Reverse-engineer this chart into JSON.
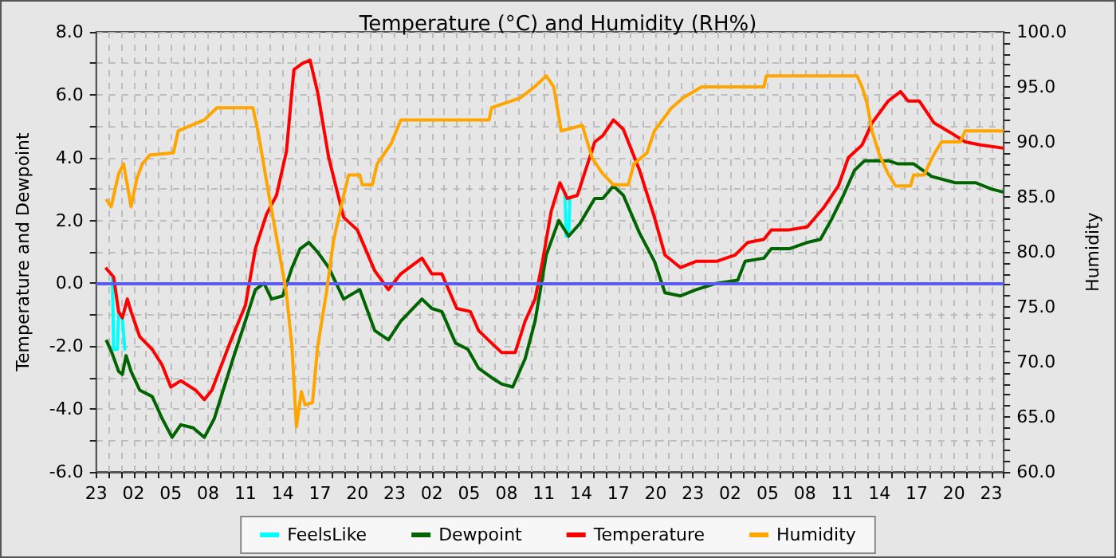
{
  "chart_data": {
    "type": "line",
    "title": "Temperature (°C) and Humidity (RH%)",
    "ylabel": "Temperature and Dewpoint",
    "y2label": "Humidity",
    "xlim": [
      "--01-01T23:00",
      "--01-05T00:00"
    ],
    "xticks": [
      {
        "value": "--01-01T23:00",
        "label": "23"
      },
      {
        "value": "--01-02T00:00",
        "label": null
      },
      {
        "value": "--01-02T01:00",
        "label": null
      },
      {
        "value": "--01-02T02:00",
        "label": "02"
      },
      {
        "value": "--01-02T03:00",
        "label": null
      },
      {
        "value": "--01-02T04:00",
        "label": null
      },
      {
        "value": "--01-02T05:00",
        "label": "05"
      },
      {
        "value": "--01-02T06:00",
        "label": null
      },
      {
        "value": "--01-02T07:00",
        "label": null
      },
      {
        "value": "--01-02T08:00",
        "label": "08"
      },
      {
        "value": "--01-02T09:00",
        "label": null
      },
      {
        "value": "--01-02T10:00",
        "label": null
      },
      {
        "value": "--01-02T11:00",
        "label": "11"
      },
      {
        "value": "--01-02T12:00",
        "label": null
      },
      {
        "value": "--01-02T13:00",
        "label": null
      },
      {
        "value": "--01-02T14:00",
        "label": "14"
      },
      {
        "value": "--01-02T15:00",
        "label": null
      },
      {
        "value": "--01-02T16:00",
        "label": null
      },
      {
        "value": "--01-02T17:00",
        "label": "17"
      },
      {
        "value": "--01-02T18:00",
        "label": null
      },
      {
        "value": "--01-02T19:00",
        "label": null
      },
      {
        "value": "--01-02T20:00",
        "label": "20"
      },
      {
        "value": "--01-02T21:00",
        "label": null
      },
      {
        "value": "--01-02T22:00",
        "label": null
      },
      {
        "value": "--01-02T23:00",
        "label": "23"
      },
      {
        "value": "--01-03T00:00",
        "label": null
      },
      {
        "value": "--01-03T01:00",
        "label": null
      },
      {
        "value": "--01-03T02:00",
        "label": "02"
      },
      {
        "value": "--01-03T03:00",
        "label": null
      },
      {
        "value": "--01-03T04:00",
        "label": null
      },
      {
        "value": "--01-03T05:00",
        "label": "05"
      },
      {
        "value": "--01-03T06:00",
        "label": null
      },
      {
        "value": "--01-03T07:00",
        "label": null
      },
      {
        "value": "--01-03T08:00",
        "label": "08"
      },
      {
        "value": "--01-03T09:00",
        "label": null
      },
      {
        "value": "--01-03T10:00",
        "label": null
      },
      {
        "value": "--01-03T11:00",
        "label": "11"
      },
      {
        "value": "--01-03T12:00",
        "label": null
      },
      {
        "value": "--01-03T13:00",
        "label": null
      },
      {
        "value": "--01-03T14:00",
        "label": "14"
      },
      {
        "value": "--01-03T15:00",
        "label": null
      },
      {
        "value": "--01-03T16:00",
        "label": null
      },
      {
        "value": "--01-03T17:00",
        "label": "17"
      },
      {
        "value": "--01-03T18:00",
        "label": null
      },
      {
        "value": "--01-03T19:00",
        "label": null
      },
      {
        "value": "--01-03T20:00",
        "label": "20"
      },
      {
        "value": "--01-03T21:00",
        "label": null
      },
      {
        "value": "--01-03T22:00",
        "label": null
      },
      {
        "value": "--01-03T23:00",
        "label": "23"
      },
      {
        "value": "--01-04T00:00",
        "label": null
      },
      {
        "value": "--01-04T01:00",
        "label": null
      },
      {
        "value": "--01-04T02:00",
        "label": "02"
      },
      {
        "value": "--01-04T03:00",
        "label": null
      },
      {
        "value": "--01-04T04:00",
        "label": null
      },
      {
        "value": "--01-04T05:00",
        "label": "05"
      },
      {
        "value": "--01-04T06:00",
        "label": null
      },
      {
        "value": "--01-04T07:00",
        "label": null
      },
      {
        "value": "--01-04T08:00",
        "label": "08"
      },
      {
        "value": "--01-04T09:00",
        "label": null
      },
      {
        "value": "--01-04T10:00",
        "label": null
      },
      {
        "value": "--01-04T11:00",
        "label": "11"
      },
      {
        "value": "--01-04T12:00",
        "label": null
      },
      {
        "value": "--01-04T13:00",
        "label": null
      },
      {
        "value": "--01-04T14:00",
        "label": "14"
      },
      {
        "value": "--01-04T15:00",
        "label": null
      },
      {
        "value": "--01-04T16:00",
        "label": null
      },
      {
        "value": "--01-04T17:00",
        "label": "17"
      },
      {
        "value": "--01-04T18:00",
        "label": null
      },
      {
        "value": "--01-04T19:00",
        "label": null
      },
      {
        "value": "--01-04T20:00",
        "label": "20"
      },
      {
        "value": "--01-04T21:00",
        "label": null
      },
      {
        "value": "--01-04T22:00",
        "label": null
      },
      {
        "value": "--01-04T23:00",
        "label": "23"
      },
      {
        "value": "--01-05T00:00",
        "label": null
      }
    ],
    "ylim": [
      -6,
      8
    ],
    "yticks": [
      {
        "value": -6,
        "label": "-6.0"
      },
      {
        "value": -5,
        "label": null
      },
      {
        "value": -4,
        "label": "-4.0"
      },
      {
        "value": -3,
        "label": null
      },
      {
        "value": -2,
        "label": "-2.0"
      },
      {
        "value": -1,
        "label": null
      },
      {
        "value": 0,
        "label": "0.0"
      },
      {
        "value": 1,
        "label": null
      },
      {
        "value": 2,
        "label": "2.0"
      },
      {
        "value": 3,
        "label": null
      },
      {
        "value": 4,
        "label": "4.0"
      },
      {
        "value": 5,
        "label": null
      },
      {
        "value": 6,
        "label": "6.0"
      },
      {
        "value": 7,
        "label": null
      },
      {
        "value": 8,
        "label": "8.0"
      }
    ],
    "y2lim": [
      60,
      100
    ],
    "y2ticks": [
      {
        "value": 60,
        "label": "60.0"
      },
      {
        "value": 61,
        "label": null
      },
      {
        "value": 62,
        "label": null
      },
      {
        "value": 63,
        "label": null
      },
      {
        "value": 64,
        "label": null
      },
      {
        "value": 65,
        "label": "65.0"
      },
      {
        "value": 66,
        "label": null
      },
      {
        "value": 67,
        "label": null
      },
      {
        "value": 68,
        "label": null
      },
      {
        "value": 69,
        "label": null
      },
      {
        "value": 70,
        "label": "70.0"
      },
      {
        "value": 71,
        "label": null
      },
      {
        "value": 72,
        "label": null
      },
      {
        "value": 73,
        "label": null
      },
      {
        "value": 74,
        "label": null
      },
      {
        "value": 75,
        "label": "75.0"
      },
      {
        "value": 76,
        "label": null
      },
      {
        "value": 77,
        "label": null
      },
      {
        "value": 78,
        "label": null
      },
      {
        "value": 79,
        "label": null
      },
      {
        "value": 80,
        "label": "80.0"
      },
      {
        "value": 81,
        "label": null
      },
      {
        "value": 82,
        "label": null
      },
      {
        "value": 83,
        "label": null
      },
      {
        "value": 84,
        "label": null
      },
      {
        "value": 85,
        "label": "85.0"
      },
      {
        "value": 86,
        "label": null
      },
      {
        "value": 87,
        "label": null
      },
      {
        "value": 88,
        "label": null
      },
      {
        "value": 89,
        "label": null
      },
      {
        "value": 90,
        "label": "90.0"
      },
      {
        "value": 91,
        "label": null
      },
      {
        "value": 92,
        "label": null
      },
      {
        "value": 93,
        "label": null
      },
      {
        "value": 94,
        "label": null
      },
      {
        "value": 95,
        "label": "95.0"
      },
      {
        "value": 96,
        "label": null
      },
      {
        "value": 97,
        "label": null
      },
      {
        "value": 98,
        "label": null
      },
      {
        "value": 99,
        "label": null
      },
      {
        "value": 100,
        "label": "100.0"
      }
    ],
    "grid": true,
    "legend": "bottom",
    "marker": "none",
    "line_style": "solid",
    "ref_lines": [
      {
        "axis": "y",
        "value": 0,
        "color": "#5b5bf0"
      }
    ],
    "series": [
      {
        "name": "FeelsLike",
        "color": "#00ffff",
        "x": [
          "--01-02T00:18",
          "--01-02T00:24",
          "--01-02T00:42",
          "--01-02T00:48",
          "--01-02T01:06",
          "--01-02T01:18",
          "--01-02T01:24",
          "--01-02T01:30",
          "--01-02T02:00",
          "--01-03T12:42",
          "--01-03T12:48",
          "--01-03T13:00",
          "--01-03T13:06"
        ],
        "values": [
          0.2,
          -2.1,
          -2.1,
          -0.9,
          -1.1,
          -2.1,
          -2.1,
          null,
          null,
          2.9,
          1.5,
          1.5,
          2.7
        ]
      },
      {
        "name": "Dewpoint",
        "color": "#006400",
        "x": [
          "--01-01T23:48",
          "--01-02T00:15",
          "--01-02T00:48",
          "--01-02T01:06",
          "--01-02T01:24",
          "--01-02T01:48",
          "--01-02T02:30",
          "--01-02T03:30",
          "--01-02T04:18",
          "--01-02T05:06",
          "--01-02T05:48",
          "--01-02T06:48",
          "--01-02T07:42",
          "--01-02T08:30",
          "--01-02T10:00",
          "--01-02T11:00",
          "--01-02T11:48",
          "--01-02T12:30",
          "--01-02T13:06",
          "--01-02T14:00",
          "--01-02T14:45",
          "--01-02T15:24",
          "--01-02T16:06",
          "--01-02T16:48",
          "--01-02T17:42",
          "--01-02T18:54",
          "--01-02T20:12",
          "--01-02T21:24",
          "--01-02T22:30",
          "--01-02T23:30",
          "--01-03T01:12",
          "--01-03T02:00",
          "--01-03T02:48",
          "--01-03T03:54",
          "--01-03T04:54",
          "--01-03T05:45",
          "--01-03T06:48",
          "--01-03T07:36",
          "--01-03T08:30",
          "--01-03T09:30",
          "--01-03T10:18",
          "--01-03T11:12",
          "--01-03T12:12",
          "--01-03T13:00",
          "--01-03T13:54",
          "--01-03T15:06",
          "--01-03T15:45",
          "--01-03T16:36",
          "--01-03T17:24",
          "--01-03T18:42",
          "--01-03T19:54",
          "--01-03T20:45",
          "--01-03T22:00",
          "--01-03T23:15",
          "--01-04T00:54",
          "--01-04T02:36",
          "--01-04T03:12",
          "--01-04T04:42",
          "--01-04T05:18",
          "--01-04T06:45",
          "--01-04T08:12",
          "--01-04T09:15",
          "--01-04T10:06",
          "--01-04T11:06",
          "--01-04T12:00",
          "--01-04T12:48",
          "--01-04T14:42",
          "--01-04T15:30",
          "--01-04T16:45",
          "--01-04T18:12",
          "--01-04T20:06",
          "--01-04T21:45",
          "--01-04T23:00",
          "--01-05T00:00"
        ],
        "values": [
          -1.8,
          -2.2,
          -2.8,
          -2.9,
          -2.3,
          -2.8,
          -3.4,
          -3.6,
          -4.3,
          -4.9,
          -4.5,
          -4.6,
          -4.9,
          -4.3,
          -2.4,
          -1.2,
          -0.2,
          0.0,
          -0.5,
          -0.4,
          0.5,
          1.1,
          1.3,
          1.0,
          0.5,
          -0.5,
          -0.2,
          -1.5,
          -1.8,
          -1.2,
          -0.5,
          -0.8,
          -0.9,
          -1.9,
          -2.1,
          -2.7,
          -3.0,
          -3.2,
          -3.3,
          -2.4,
          -1.2,
          0.9,
          2.0,
          1.5,
          1.9,
          2.7,
          2.7,
          3.1,
          2.8,
          1.6,
          0.7,
          -0.3,
          -0.4,
          -0.2,
          0.0,
          0.1,
          0.7,
          0.8,
          1.1,
          1.1,
          1.3,
          1.4,
          2.0,
          2.8,
          3.6,
          3.9,
          3.9,
          3.8,
          3.8,
          3.4,
          3.2,
          3.2,
          3.0,
          2.9
        ]
      },
      {
        "name": "Temperature",
        "color": "#ff0000",
        "x": [
          "--01-01T23:45",
          "--01-02T00:24",
          "--01-02T00:48",
          "--01-02T01:06",
          "--01-02T01:30",
          "--01-02T01:48",
          "--01-02T02:30",
          "--01-02T03:30",
          "--01-02T04:18",
          "--01-02T05:00",
          "--01-02T05:48",
          "--01-02T07:00",
          "--01-02T07:42",
          "--01-02T08:18",
          "--01-02T09:45",
          "--01-02T11:00",
          "--01-02T11:48",
          "--01-02T12:42",
          "--01-02T13:30",
          "--01-02T14:18",
          "--01-02T14:54",
          "--01-02T15:36",
          "--01-02T16:12",
          "--01-02T16:48",
          "--01-02T17:42",
          "--01-02T18:54",
          "--01-02T20:00",
          "--01-02T21:24",
          "--01-02T22:30",
          "--01-02T23:30",
          "--01-03T01:12",
          "--01-03T02:00",
          "--01-03T02:48",
          "--01-03T04:00",
          "--01-03T05:06",
          "--01-03T05:45",
          "--01-03T06:48",
          "--01-03T07:36",
          "--01-03T08:42",
          "--01-03T09:30",
          "--01-03T10:18",
          "--01-03T10:54",
          "--01-03T11:36",
          "--01-03T12:18",
          "--01-03T12:54",
          "--01-03T13:42",
          "--01-03T15:06",
          "--01-03T15:45",
          "--01-03T16:36",
          "--01-03T17:24",
          "--01-03T18:42",
          "--01-03T19:54",
          "--01-03T20:45",
          "--01-03T22:00",
          "--01-03T23:15",
          "--01-04T00:54",
          "--01-04T02:24",
          "--01-04T03:24",
          "--01-04T04:42",
          "--01-04T05:18",
          "--01-04T06:45",
          "--01-04T08:12",
          "--01-04T09:30",
          "--01-04T10:42",
          "--01-04T11:30",
          "--01-04T12:36",
          "--01-04T13:24",
          "--01-04T14:42",
          "--01-04T15:42",
          "--01-04T16:18",
          "--01-04T17:12",
          "--01-04T18:24",
          "--01-04T19:42",
          "--01-04T20:54",
          "--01-04T22:12",
          "--01-05T00:00"
        ],
        "values": [
          0.5,
          0.2,
          -0.9,
          -1.1,
          -0.5,
          -0.9,
          -1.7,
          -2.1,
          -2.6,
          -3.3,
          -3.1,
          -3.4,
          -3.7,
          -3.4,
          -1.9,
          -0.7,
          1.1,
          2.2,
          2.8,
          4.2,
          6.8,
          7.0,
          7.1,
          6.1,
          4.0,
          2.1,
          1.7,
          0.4,
          -0.2,
          0.3,
          0.8,
          0.3,
          0.3,
          -0.8,
          -0.9,
          -1.5,
          -1.9,
          -2.2,
          -2.2,
          -1.2,
          -0.5,
          0.7,
          2.3,
          3.2,
          2.7,
          2.8,
          4.5,
          4.7,
          5.2,
          4.9,
          3.6,
          2.1,
          0.9,
          0.5,
          0.7,
          0.7,
          0.9,
          1.3,
          1.4,
          1.7,
          1.7,
          1.8,
          2.4,
          3.1,
          4.0,
          4.4,
          5.1,
          5.8,
          6.1,
          5.8,
          5.8,
          5.1,
          4.8,
          4.5,
          4.4,
          4.3
        ]
      },
      {
        "name": "Humidity",
        "color": "#ffa500",
        "axis": "y2",
        "x": [
          "--01-01T23:48",
          "--01-02T00:12",
          "--01-02T00:48",
          "--01-02T01:12",
          "--01-02T01:30",
          "--01-02T01:48",
          "--01-02T02:15",
          "--01-02T02:42",
          "--01-02T03:18",
          "--01-02T05:12",
          "--01-02T05:36",
          "--01-02T07:42",
          "--01-02T08:42",
          "--01-02T11:36",
          "--01-02T12:00",
          "--01-02T12:54",
          "--01-02T13:42",
          "--01-02T14:18",
          "--01-02T14:45",
          "--01-02T15:06",
          "--01-02T15:30",
          "--01-02T15:48",
          "--01-02T16:24",
          "--01-02T16:48",
          "--01-02T17:30",
          "--01-02T18:06",
          "--01-02T18:54",
          "--01-02T19:18",
          "--01-02T20:12",
          "--01-02T20:24",
          "--01-02T21:12",
          "--01-02T21:36",
          "--01-02T22:42",
          "--01-02T23:30",
          "--01-03T06:36",
          "--01-03T06:48",
          "--01-03T09:06",
          "--01-03T10:15",
          "--01-03T11:12",
          "--01-03T11:48",
          "--01-03T12:24",
          "--01-03T14:06",
          "--01-03T14:54",
          "--01-03T15:45",
          "--01-03T16:36",
          "--01-03T17:48",
          "--01-03T18:15",
          "--01-03T19:18",
          "--01-03T19:54",
          "--01-03T21:12",
          "--01-03T22:12",
          "--01-03T23:42",
          "--01-04T04:42",
          "--01-04T04:54",
          "--01-04T12:12",
          "--01-04T12:36",
          "--01-04T13:00",
          "--01-04T13:24",
          "--01-04T14:00",
          "--01-04T14:42",
          "--01-04T15:18",
          "--01-04T16:30",
          "--01-04T16:45",
          "--01-04T17:36",
          "--01-04T18:00",
          "--01-04T18:24",
          "--01-04T19:00",
          "--01-04T20:30",
          "--01-04T20:54",
          "--01-05T00:00"
        ],
        "values": [
          84.8,
          84.1,
          87.1,
          88.0,
          86.1,
          84.1,
          86.6,
          88.0,
          88.8,
          89.0,
          91.0,
          92.0,
          93.1,
          93.1,
          91.0,
          85.1,
          80.1,
          76.2,
          71.3,
          64.1,
          67.3,
          66.1,
          66.3,
          71.3,
          76.2,
          81.1,
          85.1,
          87.0,
          87.0,
          86.1,
          86.1,
          88.0,
          89.8,
          92.0,
          92.0,
          93.1,
          94.0,
          95.0,
          96.0,
          95.0,
          91.0,
          91.5,
          88.5,
          87.1,
          86.1,
          86.1,
          88.0,
          89.0,
          91.0,
          93.0,
          94.0,
          95.0,
          95.0,
          96.0,
          96.0,
          95.0,
          93.5,
          91.0,
          88.8,
          87.1,
          86.0,
          86.0,
          87.0,
          87.0,
          88.0,
          88.9,
          90.0,
          90.0,
          91.0,
          91.0
        ]
      }
    ]
  }
}
